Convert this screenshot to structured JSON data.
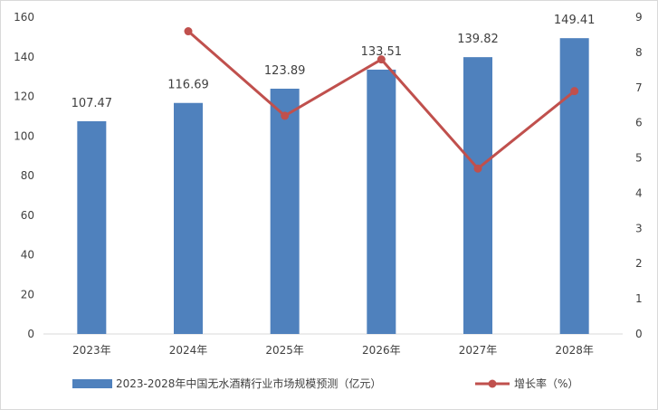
{
  "chart_data": {
    "type": "bar",
    "categories": [
      "2023年",
      "2024年",
      "2025年",
      "2026年",
      "2027年",
      "2028年"
    ],
    "series": [
      {
        "name": "2023-2028年中国无水酒精行业市场规模预测（亿元）",
        "type": "bar",
        "axis": "left",
        "values": [
          107.47,
          116.69,
          123.89,
          133.51,
          139.82,
          149.41
        ],
        "color": "#4F81BD"
      },
      {
        "name": "增长率（%）",
        "type": "line",
        "axis": "right",
        "values": [
          null,
          8.6,
          6.2,
          7.8,
          4.7,
          6.9
        ],
        "color": "#C0504D"
      }
    ],
    "y_left": {
      "min": 0,
      "max": 160,
      "ticks": [
        0,
        20,
        40,
        60,
        80,
        100,
        120,
        140,
        160
      ]
    },
    "y_right": {
      "min": 0,
      "max": 9,
      "ticks": [
        0,
        1,
        2,
        3,
        4,
        5,
        6,
        7,
        8,
        9
      ]
    },
    "data_labels": [
      "107.47",
      "116.69",
      "123.89",
      "133.51",
      "139.82",
      "149.41"
    ],
    "grid": false,
    "legend_position": "bottom"
  }
}
